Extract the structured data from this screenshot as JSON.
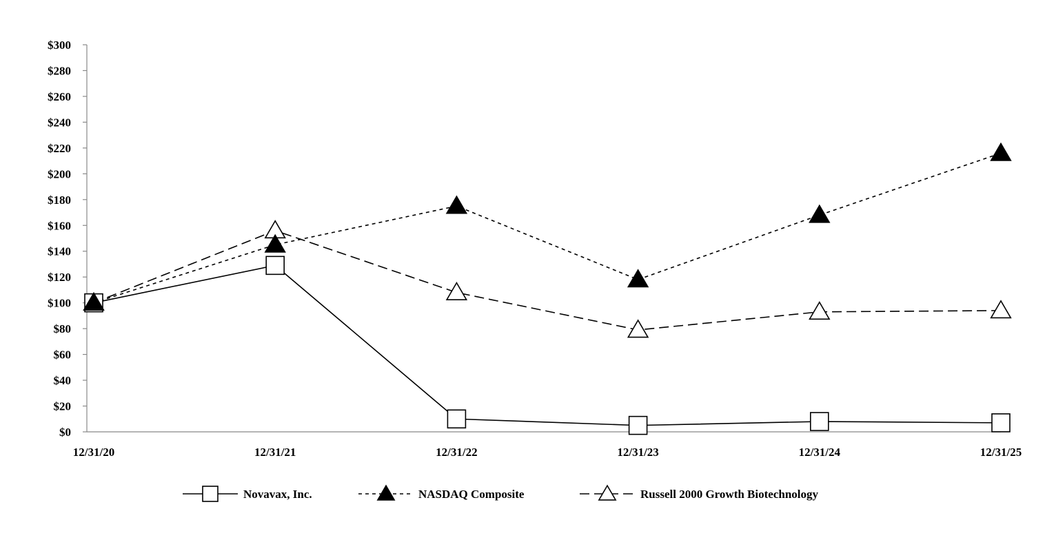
{
  "chart_data": {
    "type": "line",
    "title": "",
    "xlabel": "",
    "ylabel": "",
    "categories": [
      "12/31/20",
      "12/31/21",
      "12/31/22",
      "12/31/23",
      "12/31/24",
      "12/31/25"
    ],
    "ylim": [
      0,
      300
    ],
    "y_ticks": [
      0,
      20,
      40,
      60,
      80,
      100,
      120,
      140,
      160,
      180,
      200,
      220,
      240,
      260,
      280,
      300
    ],
    "y_tick_prefix": "$",
    "grid": false,
    "legend_position": "bottom",
    "series": [
      {
        "name": "Novavax, Inc.",
        "values": [
          100,
          129,
          10,
          5,
          8,
          7
        ],
        "line_style": "solid",
        "marker": "open-square",
        "color": "#000000"
      },
      {
        "name": "NASDAQ Composite",
        "values": [
          100,
          145,
          175,
          118,
          168,
          216
        ],
        "line_style": "dotted",
        "marker": "filled-triangle",
        "color": "#000000"
      },
      {
        "name": "Russell 2000 Growth Biotechnology",
        "values": [
          100,
          156,
          108,
          79,
          93,
          94
        ],
        "line_style": "dashed",
        "marker": "open-triangle",
        "color": "#000000"
      }
    ]
  }
}
